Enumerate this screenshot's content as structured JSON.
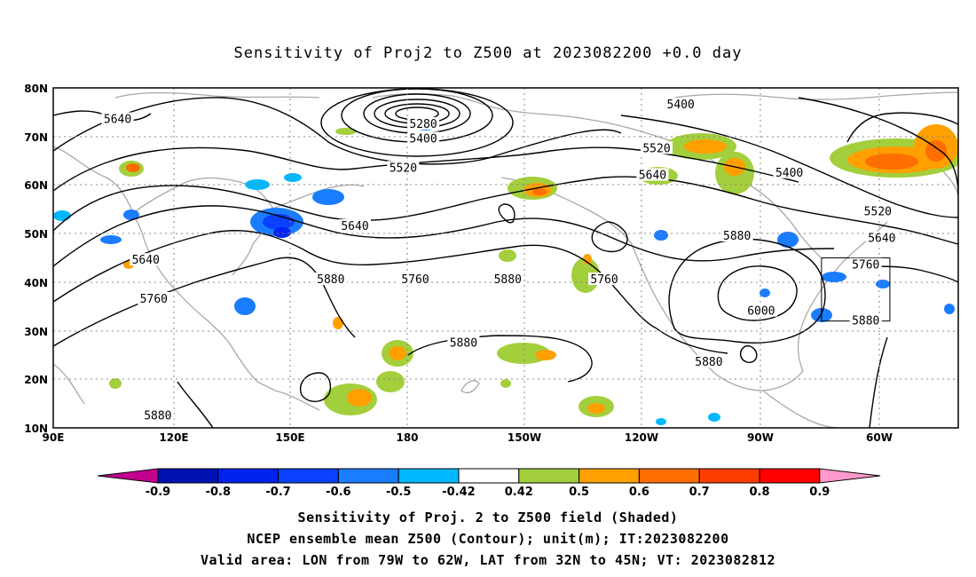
{
  "title": "Sensitivity of Proj2 to Z500 at 2023082200 +0.0 day",
  "map": {
    "lat_labels": [
      "80N",
      "70N",
      "60N",
      "50N",
      "40N",
      "30N",
      "20N",
      "10N"
    ],
    "lon_labels": [
      "90E",
      "120E",
      "150E",
      "180",
      "150W",
      "120W",
      "90W",
      "60W"
    ],
    "lon_range_east_deg": [
      90,
      315
    ],
    "lat_range": [
      10,
      80
    ],
    "grid": "dotted",
    "validation_box": {
      "lon": [
        281,
        298
      ],
      "lat": [
        32,
        45
      ]
    }
  },
  "contour_labels": [
    {
      "text": "5640",
      "lon": 106,
      "lat": 73.5
    },
    {
      "text": "5280",
      "lon": 182,
      "lat": 72.5
    },
    {
      "text": "5400",
      "lon": 182,
      "lat": 69.5
    },
    {
      "text": "5520",
      "lon": 177,
      "lat": 63.5
    },
    {
      "text": "5640",
      "lon": 165,
      "lat": 51.5
    },
    {
      "text": "5880",
      "lon": 159,
      "lat": 40.5
    },
    {
      "text": "5640",
      "lon": 113,
      "lat": 44.5
    },
    {
      "text": "5760",
      "lon": 115,
      "lat": 36.5
    },
    {
      "text": "5880",
      "lon": 116,
      "lat": 12.5
    },
    {
      "text": "5760",
      "lon": 180,
      "lat": 40.5
    },
    {
      "text": "5880",
      "lon": 203,
      "lat": 40.5
    },
    {
      "text": "5760",
      "lon": 227,
      "lat": 40.5
    },
    {
      "text": "5880",
      "lon": 192,
      "lat": 27.5
    },
    {
      "text": "5400",
      "lon": 246,
      "lat": 76.5
    },
    {
      "text": "5520",
      "lon": 240,
      "lat": 67.5
    },
    {
      "text": "5640",
      "lon": 239,
      "lat": 62.0
    },
    {
      "text": "5400",
      "lon": 273,
      "lat": 62.5
    },
    {
      "text": "5520",
      "lon": 295,
      "lat": 54.5
    },
    {
      "text": "5640",
      "lon": 296,
      "lat": 49.0
    },
    {
      "text": "5760",
      "lon": 292,
      "lat": 43.5
    },
    {
      "text": "5880",
      "lon": 260,
      "lat": 49.5
    },
    {
      "text": "6000",
      "lon": 266,
      "lat": 34.0
    },
    {
      "text": "5880",
      "lon": 292,
      "lat": 32.0
    },
    {
      "text": "5880",
      "lon": 253,
      "lat": 23.5
    }
  ],
  "colorbar": {
    "labels": [
      "-0.9",
      "-0.8",
      "-0.7",
      "-0.6",
      "-0.5",
      "-0.42",
      "0.42",
      "0.5",
      "0.6",
      "0.7",
      "0.8",
      "0.9"
    ],
    "colors": [
      "#c2008e",
      "#0012b3",
      "#0023ee",
      "#0a40ff",
      "#1a7cff",
      "#00b8ff",
      "#ffffff",
      "#a3cf3c",
      "#ff9f00",
      "#ff6e00",
      "#ff3d00",
      "#ff0000",
      "#ff99cc"
    ]
  },
  "captions": {
    "line1": "Sensitivity of Proj. 2 to Z500 field (Shaded)",
    "line2": "NCEP ensemble mean Z500 (Contour); unit(m); IT:2023082200",
    "line3": "Valid area: LON from 79W to 62W, LAT from 32N to 45N; VT: 2023082812"
  }
}
